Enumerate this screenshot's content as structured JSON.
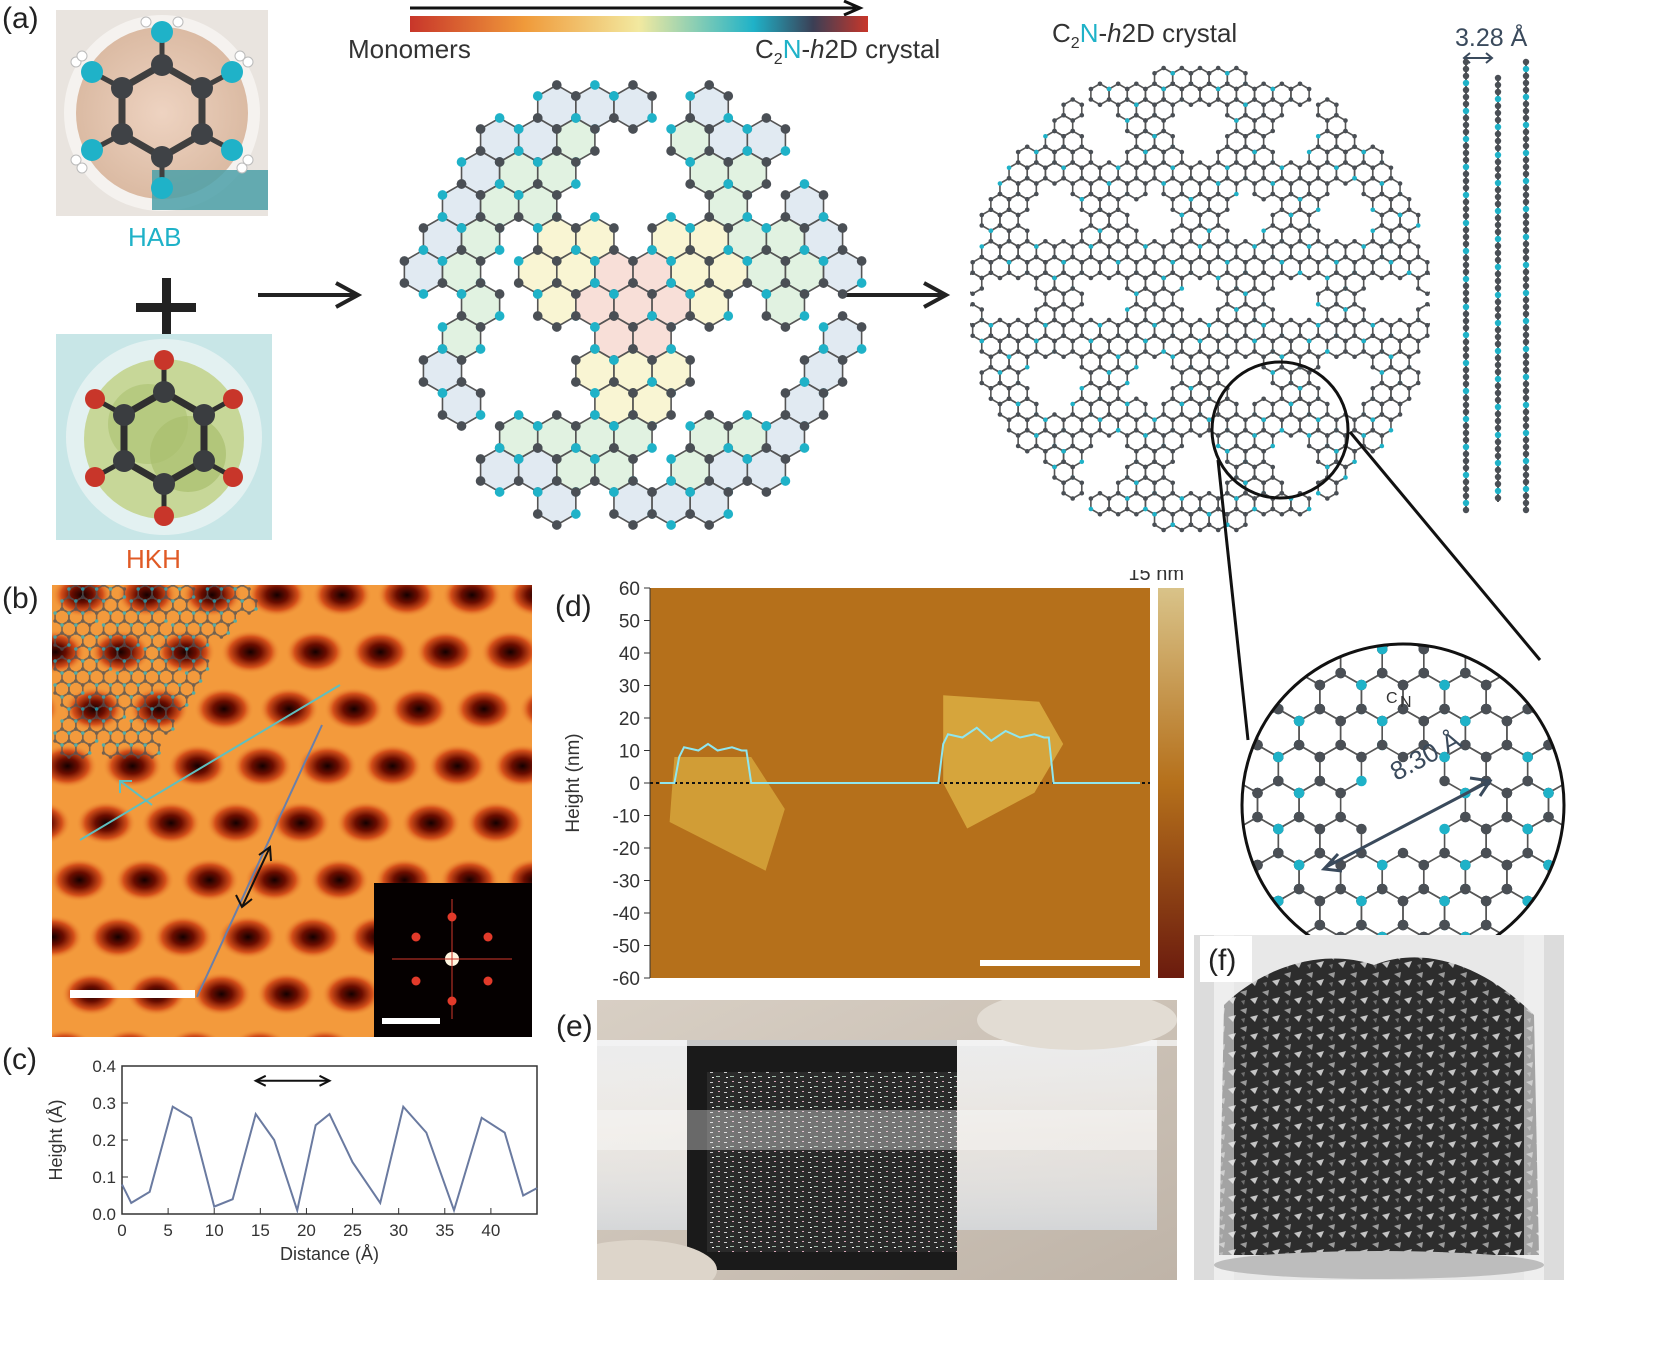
{
  "panels": {
    "a": "(a)",
    "b": "(b)",
    "c": "(c)",
    "d": "(d)",
    "e": "(e)",
    "f": "(f)"
  },
  "panel_a": {
    "hab_label": "HAB",
    "hkh_label": "HKH",
    "plus": "+",
    "gradient_start": "Monomers",
    "gradient_end_prefix": "C",
    "gradient_end_sub": "2",
    "gradient_end_n": "N",
    "gradient_end_dash": "-",
    "gradient_end_h": "h",
    "gradient_end_suffix": "2D crystal",
    "crystal_title_prefix": "C",
    "crystal_title_sub": "2",
    "crystal_title_n": "N",
    "crystal_title_dash": "-",
    "crystal_title_h": "h",
    "crystal_title_suffix": "2D crystal",
    "interlayer": "3.28 Å",
    "pore": "8.30 Å",
    "atom_c": "C",
    "atom_n": "N"
  },
  "colors": {
    "carbon": "#4a4f55",
    "nitrogen": "#1fb2c8",
    "oxygen": "#c8362a",
    "arrow": "#222222",
    "stm_bg": "#f39a3c",
    "afm_bg": "#b5701b"
  },
  "chart_data": [
    {
      "id": "c",
      "type": "line",
      "xlabel": "Distance (Å)",
      "ylabel": "Height (Å)",
      "xlim": [
        0,
        45
      ],
      "ylim": [
        0.0,
        0.4
      ],
      "xticks": [
        "0",
        "5",
        "10",
        "15",
        "20",
        "25",
        "30",
        "35",
        "40"
      ],
      "yticks": [
        "0.0",
        "0.1",
        "0.2",
        "0.3",
        "0.4"
      ],
      "series": [
        {
          "x": [
            0,
            1,
            3,
            5.5,
            7.5,
            10,
            12,
            14.5,
            16.5,
            19,
            21,
            22.5,
            25,
            28,
            30.5,
            33,
            36,
            39,
            41.5,
            43.5,
            45
          ],
          "y": [
            0.08,
            0.03,
            0.06,
            0.29,
            0.26,
            0.02,
            0.04,
            0.27,
            0.2,
            0.01,
            0.24,
            0.27,
            0.14,
            0.03,
            0.29,
            0.22,
            0.01,
            0.26,
            0.22,
            0.05,
            0.07
          ]
        }
      ]
    },
    {
      "id": "d",
      "type": "line",
      "ylabel": "Height (nm)",
      "ylim": [
        -60,
        60
      ],
      "yticks": [
        "60",
        "50",
        "40",
        "30",
        "20",
        "10",
        "0",
        "-10",
        "-20",
        "-30",
        "-40",
        "-50",
        "-60"
      ],
      "colorbar_label": "15 nm",
      "series": [
        {
          "x": [
            0,
            3,
            4,
            5,
            8,
            10,
            12,
            15,
            17,
            18,
            19,
            25,
            50,
            55,
            58,
            59,
            60,
            63,
            66,
            69,
            72,
            75,
            78,
            80,
            81,
            82,
            90,
            100
          ],
          "y": [
            0,
            0,
            8,
            11,
            10,
            12,
            10,
            11,
            10,
            10,
            0,
            0,
            0,
            0,
            0,
            12,
            15,
            14,
            17,
            13,
            16,
            14,
            15,
            14,
            14,
            0,
            0,
            0
          ]
        }
      ]
    }
  ]
}
